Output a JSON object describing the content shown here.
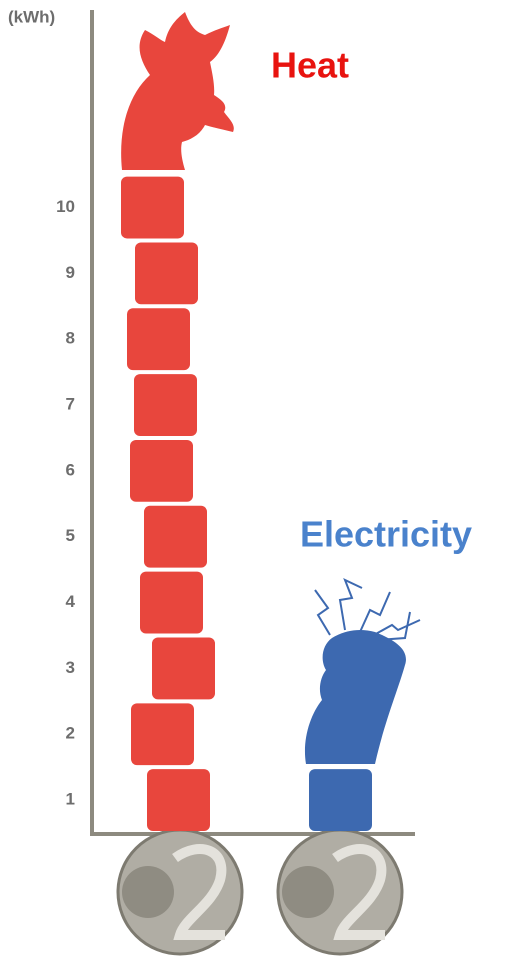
{
  "chart_data": {
    "type": "bar",
    "y_label": "(kWh)",
    "categories": [
      "Heat",
      "Electricity"
    ],
    "values": [
      10,
      1
    ],
    "colors": [
      "#e8463d",
      "#3d69b0"
    ],
    "label_colors": [
      "#e8130f",
      "#4a82cc"
    ],
    "ylim": [
      0,
      12.5
    ],
    "yticks": [
      1,
      2,
      3,
      4,
      5,
      6,
      7,
      8,
      9,
      10
    ]
  }
}
